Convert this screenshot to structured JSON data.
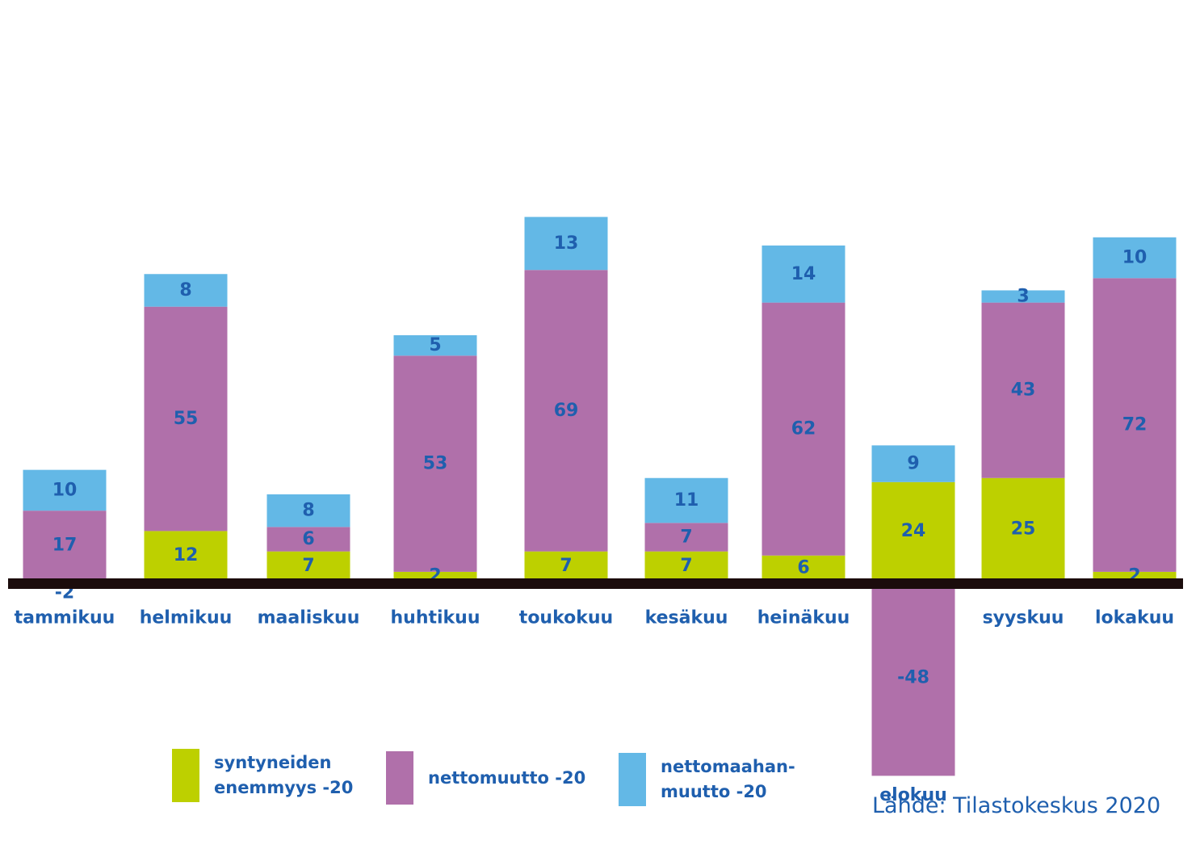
{
  "chart_data": {
    "type": "bar",
    "stacked": true,
    "categories": [
      "tammikuu",
      "helmikuu",
      "maaliskuu",
      "huhtikuu",
      "toukokuu",
      "kesäkuu",
      "heinäkuu",
      "elokuu",
      "syyskuu",
      "lokakuu"
    ],
    "series": [
      {
        "name": "syntyneiden enemmyys -20",
        "color": "#bdd000",
        "values": [
          -2,
          12,
          7,
          2,
          7,
          7,
          6,
          24,
          25,
          2
        ]
      },
      {
        "name": "nettomuutto -20",
        "color": "#b070aa",
        "values": [
          17,
          55,
          6,
          53,
          69,
          7,
          62,
          -48,
          43,
          72
        ]
      },
      {
        "name": "nettomaahanmuutto -20",
        "color": "#63b8e6",
        "values": [
          10,
          8,
          8,
          5,
          13,
          11,
          14,
          9,
          3,
          10
        ]
      }
    ],
    "legend_position": "bottom",
    "grid": false
  },
  "legend": [
    {
      "label": "syntyneiden\nenemmyys -20",
      "color": "#bdd000"
    },
    {
      "label": "nettomuutto -20",
      "color": "#b070aa"
    },
    {
      "label": "nettomaahan-\nmuutto -20",
      "color": "#63b8e6"
    }
  ],
  "source": "Lähde: Tilastokeskus 2020",
  "colors": {
    "label_text": "#1f5fae",
    "baseline": "#1b0c0c"
  }
}
